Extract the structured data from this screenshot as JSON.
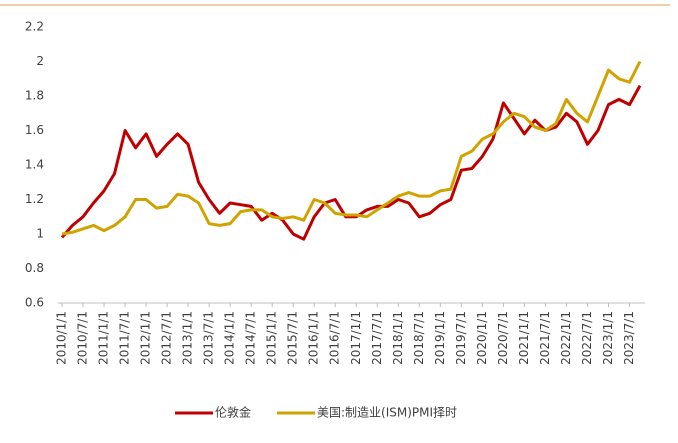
{
  "chart_data": {
    "type": "line",
    "categories": [
      "2010/1/1",
      null,
      "2010/7/1",
      null,
      "2011/1/1",
      null,
      "2011/7/1",
      null,
      "2012/1/1",
      null,
      "2012/7/1",
      null,
      "2013/1/1",
      null,
      "2013/7/1",
      null,
      "2014/1/1",
      null,
      "2014/7/1",
      null,
      "2015/1/1",
      null,
      "2015/7/1",
      null,
      "2016/1/1",
      null,
      "2016/7/1",
      null,
      "2017/1/1",
      null,
      "2017/7/1",
      null,
      "2018/1/1",
      null,
      "2018/7/1",
      null,
      "2019/1/1",
      null,
      "2019/7/1",
      null,
      "2020/1/1",
      null,
      "2020/7/1",
      null,
      "2021/1/1",
      null,
      "2021/7/1",
      null,
      "2022/1/1",
      null,
      "2022/7/1",
      null,
      "2023/1/1",
      null,
      "2023/7/1",
      null
    ],
    "series": [
      {
        "name": "伦敦金",
        "color": "#c00000",
        "values": [
          0.98,
          1.05,
          1.1,
          1.18,
          1.25,
          1.35,
          1.6,
          1.5,
          1.58,
          1.45,
          1.52,
          1.58,
          1.52,
          1.3,
          1.2,
          1.12,
          1.18,
          1.17,
          1.16,
          1.08,
          1.12,
          1.08,
          1.0,
          0.97,
          1.1,
          1.18,
          1.2,
          1.1,
          1.1,
          1.14,
          1.16,
          1.16,
          1.2,
          1.18,
          1.1,
          1.12,
          1.17,
          1.2,
          1.37,
          1.38,
          1.45,
          1.55,
          1.76,
          1.67,
          1.58,
          1.66,
          1.6,
          1.62,
          1.7,
          1.65,
          1.52,
          1.6,
          1.75,
          1.78,
          1.75,
          1.86
        ]
      },
      {
        "name": "美国:制造业(ISM)PMI择时",
        "color": "#cfa400",
        "values": [
          1.0,
          1.01,
          1.03,
          1.05,
          1.02,
          1.05,
          1.1,
          1.2,
          1.2,
          1.15,
          1.16,
          1.23,
          1.22,
          1.18,
          1.06,
          1.05,
          1.06,
          1.13,
          1.14,
          1.14,
          1.1,
          1.09,
          1.1,
          1.08,
          1.2,
          1.18,
          1.12,
          1.11,
          1.11,
          1.1,
          1.14,
          1.18,
          1.22,
          1.24,
          1.22,
          1.22,
          1.25,
          1.26,
          1.45,
          1.48,
          1.55,
          1.58,
          1.65,
          1.7,
          1.68,
          1.62,
          1.6,
          1.64,
          1.78,
          1.7,
          1.65,
          1.8,
          1.95,
          1.9,
          1.88,
          2.0
        ]
      }
    ],
    "ylim": [
      0.6,
      2.2
    ],
    "yticks": [
      0.6,
      0.8,
      1,
      1.2,
      1.4,
      1.6,
      1.8,
      2,
      2.2
    ],
    "grid": false,
    "legend": "bottom"
  }
}
